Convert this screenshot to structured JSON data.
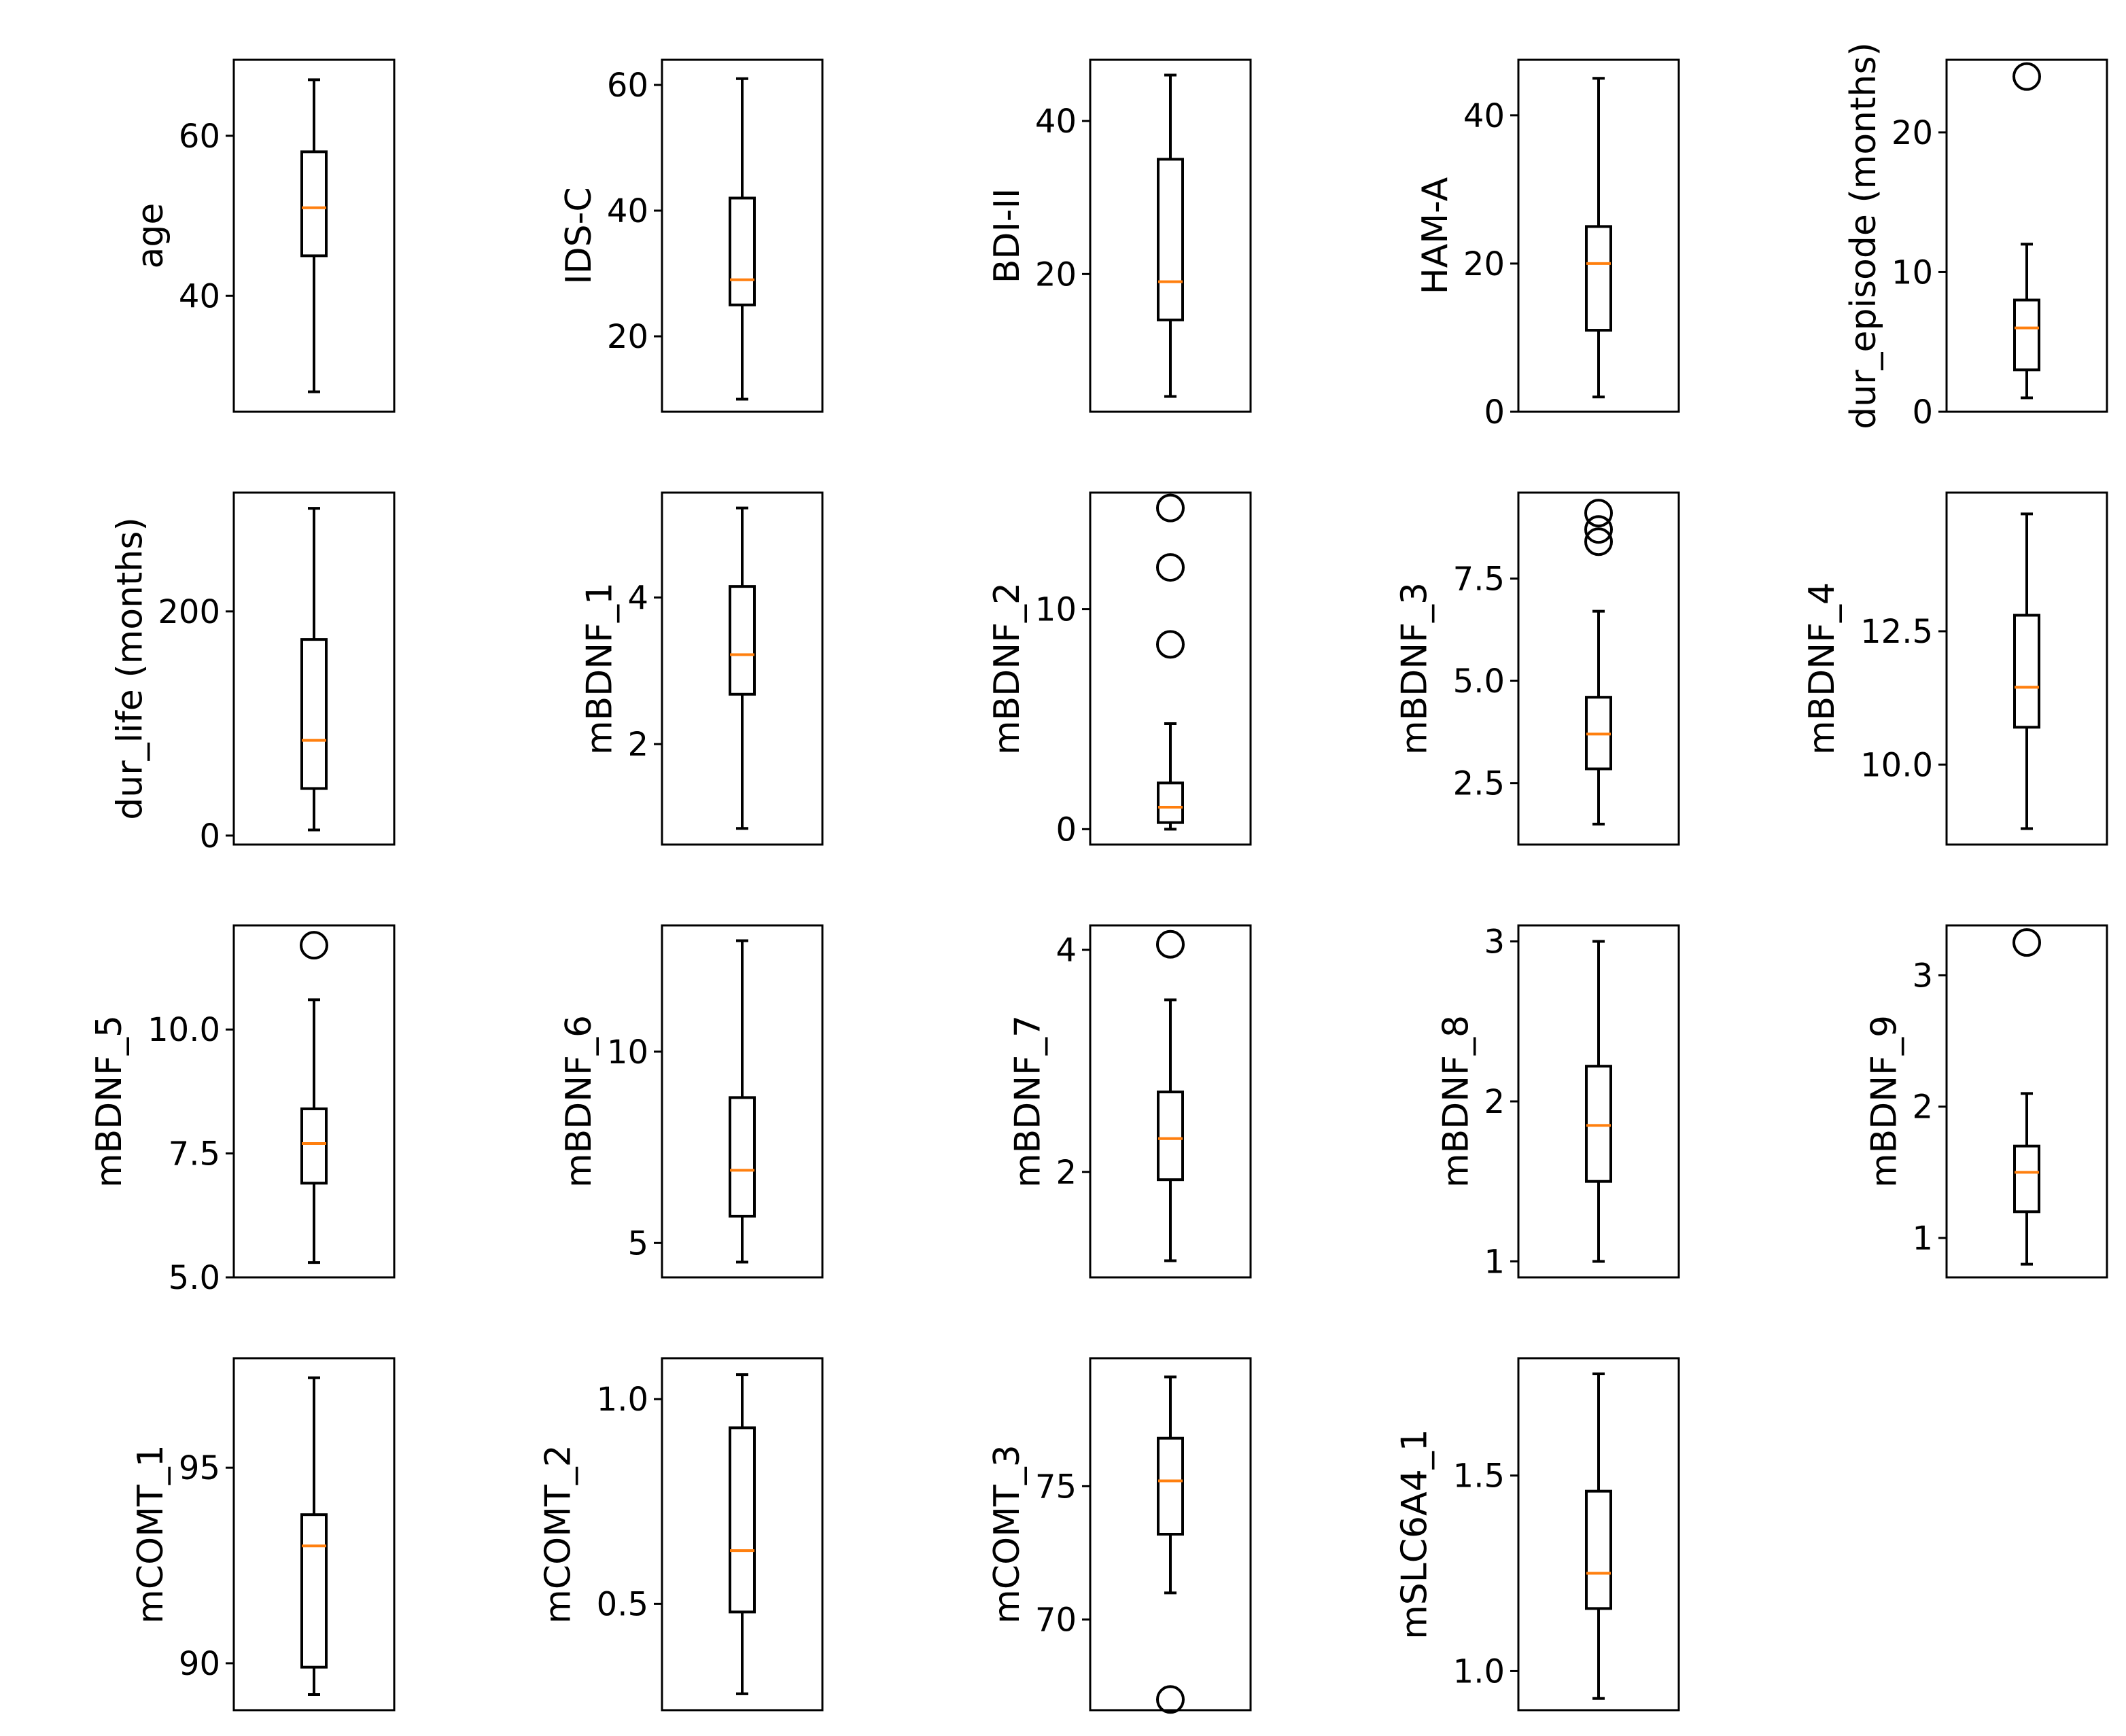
{
  "colors": {
    "box": "#000000",
    "median": "#ff7f0e",
    "background": "#ffffff"
  },
  "chart_data": [
    {
      "type": "box",
      "ylabel": "age",
      "ylim": [
        25.5,
        69.5
      ],
      "yticks": [
        40,
        60
      ],
      "ytick_labels": [
        "40",
        "60"
      ],
      "box": {
        "whislo": 28,
        "q1": 45,
        "med": 51,
        "q3": 58,
        "whishi": 67,
        "fliers": []
      }
    },
    {
      "type": "box",
      "ylabel": "IDS-C",
      "ylim": [
        8,
        64
      ],
      "yticks": [
        20,
        40,
        60
      ],
      "ytick_labels": [
        "20",
        "40",
        "60"
      ],
      "box": {
        "whislo": 10,
        "q1": 25,
        "med": 29,
        "q3": 42,
        "whishi": 61,
        "fliers": []
      }
    },
    {
      "type": "box",
      "ylabel": "BDI-II",
      "ylim": [
        2,
        48
      ],
      "yticks": [
        20,
        40
      ],
      "ytick_labels": [
        "20",
        "40"
      ],
      "box": {
        "whislo": 4,
        "q1": 14,
        "med": 19,
        "q3": 35,
        "whishi": 46,
        "fliers": []
      }
    },
    {
      "type": "box",
      "ylabel": "HAM-A",
      "ylim": [
        0,
        47.5
      ],
      "yticks": [
        0,
        20,
        40
      ],
      "ytick_labels": [
        "0",
        "20",
        "40"
      ],
      "box": {
        "whislo": 2,
        "q1": 11,
        "med": 20,
        "q3": 25,
        "whishi": 45,
        "fliers": []
      }
    },
    {
      "type": "box",
      "ylabel": "dur_episode (months)",
      "ylim": [
        0,
        25.2
      ],
      "yticks": [
        0,
        10,
        20
      ],
      "ytick_labels": [
        "0",
        "10",
        "20"
      ],
      "box": {
        "whislo": 1,
        "q1": 3,
        "med": 6,
        "q3": 8,
        "whishi": 12,
        "fliers": [
          24
        ]
      }
    },
    {
      "type": "box",
      "ylabel": "dur_life (months)",
      "ylim": [
        -8,
        306
      ],
      "yticks": [
        0,
        200
      ],
      "ytick_labels": [
        "0",
        "200"
      ],
      "box": {
        "whislo": 5,
        "q1": 42,
        "med": 85,
        "q3": 175,
        "whishi": 292,
        "fliers": []
      }
    },
    {
      "type": "box",
      "ylabel": "mBDNF_1",
      "ylim": [
        0.63,
        5.43
      ],
      "yticks": [
        2,
        4
      ],
      "ytick_labels": [
        "2",
        "4"
      ],
      "box": {
        "whislo": 0.85,
        "q1": 2.68,
        "med": 3.22,
        "q3": 4.15,
        "whishi": 5.22,
        "fliers": []
      }
    },
    {
      "type": "box",
      "ylabel": "mBDNF_2",
      "ylim": [
        -0.7,
        15.3
      ],
      "yticks": [
        0,
        10
      ],
      "ytick_labels": [
        "0",
        "10"
      ],
      "box": {
        "whislo": 0,
        "q1": 0.3,
        "med": 1,
        "q3": 2.1,
        "whishi": 4.8,
        "fliers": [
          8.4,
          11.9,
          14.6
        ]
      }
    },
    {
      "type": "box",
      "ylabel": "mBDNF_3",
      "ylim": [
        1.0,
        9.6
      ],
      "yticks": [
        2.5,
        5.0,
        7.5
      ],
      "ytick_labels": [
        "2.5",
        "5.0",
        "7.5"
      ],
      "box": {
        "whislo": 1.5,
        "q1": 2.85,
        "med": 3.7,
        "q3": 4.6,
        "whishi": 6.7,
        "fliers": [
          8.4,
          8.7,
          9.1
        ]
      }
    },
    {
      "type": "box",
      "ylabel": "mBDNF_4",
      "ylim": [
        8.5,
        15.1
      ],
      "yticks": [
        10.0,
        12.5
      ],
      "ytick_labels": [
        "10.0",
        "12.5"
      ],
      "box": {
        "whislo": 8.8,
        "q1": 10.7,
        "med": 11.45,
        "q3": 12.8,
        "whishi": 14.7,
        "fliers": []
      }
    },
    {
      "type": "box",
      "ylabel": "mBDNF_5",
      "ylim": [
        5.0,
        12.1
      ],
      "yticks": [
        5.0,
        7.5,
        10.0
      ],
      "ytick_labels": [
        "5.0",
        "7.5",
        "10.0"
      ],
      "box": {
        "whislo": 5.3,
        "q1": 6.9,
        "med": 7.7,
        "q3": 8.4,
        "whishi": 10.6,
        "fliers": [
          11.7
        ]
      }
    },
    {
      "type": "box",
      "ylabel": "mBDNF_6",
      "ylim": [
        4.1,
        13.3
      ],
      "yticks": [
        5,
        10
      ],
      "ytick_labels": [
        "5",
        "10"
      ],
      "box": {
        "whislo": 4.5,
        "q1": 5.7,
        "med": 6.9,
        "q3": 8.8,
        "whishi": 12.9,
        "fliers": []
      }
    },
    {
      "type": "box",
      "ylabel": "mBDNF_7",
      "ylim": [
        1.05,
        4.22
      ],
      "yticks": [
        2,
        4
      ],
      "ytick_labels": [
        "2",
        "4"
      ],
      "box": {
        "whislo": 1.2,
        "q1": 1.93,
        "med": 2.3,
        "q3": 2.72,
        "whishi": 3.55,
        "fliers": [
          4.05
        ]
      }
    },
    {
      "type": "box",
      "ylabel": "mBDNF_8",
      "ylim": [
        0.9,
        3.1
      ],
      "yticks": [
        1,
        2,
        3
      ],
      "ytick_labels": [
        "1",
        "2",
        "3"
      ],
      "box": {
        "whislo": 1.0,
        "q1": 1.5,
        "med": 1.85,
        "q3": 2.22,
        "whishi": 3.0,
        "fliers": []
      }
    },
    {
      "type": "box",
      "ylabel": "mBDNF_9",
      "ylim": [
        0.7,
        3.38
      ],
      "yticks": [
        1,
        2,
        3
      ],
      "ytick_labels": [
        "1",
        "2",
        "3"
      ],
      "box": {
        "whislo": 0.8,
        "q1": 1.2,
        "med": 1.5,
        "q3": 1.7,
        "whishi": 2.1,
        "fliers": [
          3.25
        ]
      }
    },
    {
      "type": "box",
      "ylabel": "mCOMT_1",
      "ylim": [
        88.8,
        97.8
      ],
      "yticks": [
        90,
        95
      ],
      "ytick_labels": [
        "90",
        "95"
      ],
      "box": {
        "whislo": 89.2,
        "q1": 89.9,
        "med": 93.0,
        "q3": 93.8,
        "whishi": 97.3,
        "fliers": []
      }
    },
    {
      "type": "box",
      "ylabel": "mCOMT_2",
      "ylim": [
        0.24,
        1.1
      ],
      "yticks": [
        0.5,
        1.0
      ],
      "ytick_labels": [
        "0.5",
        "1.0"
      ],
      "box": {
        "whislo": 0.28,
        "q1": 0.48,
        "med": 0.63,
        "q3": 0.93,
        "whishi": 1.06,
        "fliers": []
      }
    },
    {
      "type": "box",
      "ylabel": "mCOMT_3",
      "ylim": [
        66.6,
        79.8
      ],
      "yticks": [
        70,
        75
      ],
      "ytick_labels": [
        "70",
        "75"
      ],
      "box": {
        "whislo": 71.0,
        "q1": 73.2,
        "med": 75.2,
        "q3": 76.8,
        "whishi": 79.1,
        "fliers": [
          67.0
        ]
      }
    },
    {
      "type": "box",
      "ylabel": "mSLC6A4_1",
      "ylim": [
        0.9,
        1.8
      ],
      "yticks": [
        1.0,
        1.5
      ],
      "ytick_labels": [
        "1.0",
        "1.5"
      ],
      "box": {
        "whislo": 0.93,
        "q1": 1.16,
        "med": 1.25,
        "q3": 1.46,
        "whishi": 1.76,
        "fliers": []
      }
    }
  ]
}
